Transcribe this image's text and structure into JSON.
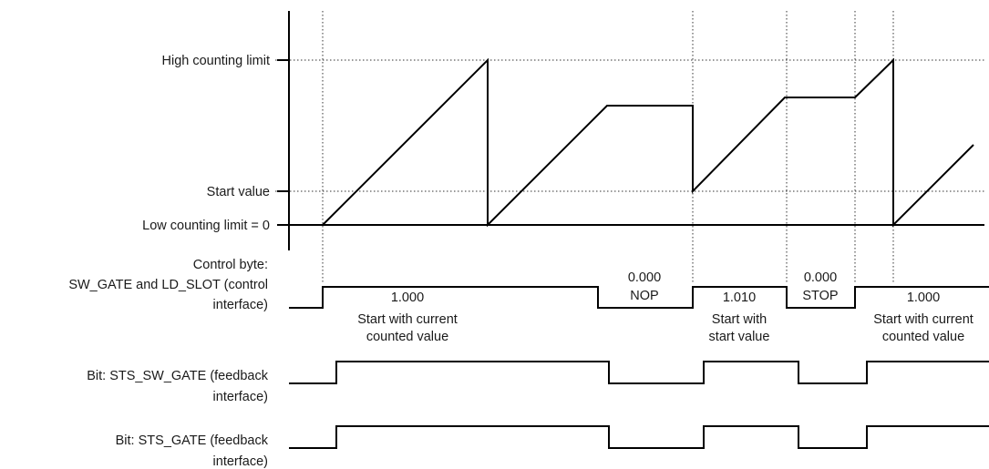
{
  "y_levels": {
    "high": "High counting limit",
    "start": "Start value",
    "low": "Low counting limit = 0"
  },
  "signals": {
    "control": {
      "label_lines": [
        "Control byte:",
        "SW_GATE and LD_SLOT (control",
        "interface)"
      ]
    },
    "sts_sw_gate": {
      "label_lines": [
        "Bit: STS_SW_GATE (feedback",
        "interface)"
      ]
    },
    "sts_gate": {
      "label_lines": [
        "Bit: STS_GATE (feedback",
        "interface)"
      ]
    }
  },
  "control_phases": [
    {
      "code": "1.000",
      "lines": [
        "Start with current",
        "counted value"
      ]
    },
    {
      "code": "0.000",
      "lines": [
        "NOP"
      ]
    },
    {
      "code": "1.010",
      "lines": [
        "Start with",
        "start value"
      ]
    },
    {
      "code": "0.000",
      "lines": [
        "STOP"
      ]
    },
    {
      "code": "1.000",
      "lines": [
        "Start with current",
        "counted value"
      ]
    }
  ]
}
